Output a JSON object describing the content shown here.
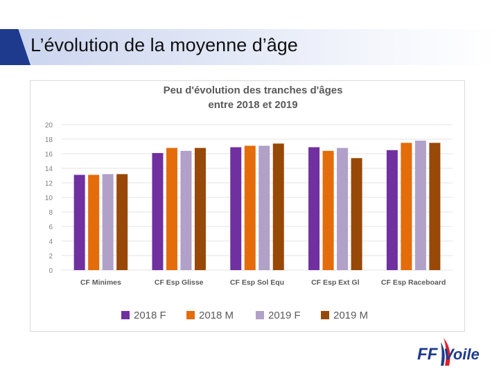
{
  "slide": {
    "title": "L’évolution de la moyenne d’âge"
  },
  "logo": {
    "text_ff": "FF",
    "text_voile": "Voile",
    "brand_color": "#1d3a8c",
    "accent_color": "#e11f26"
  },
  "chart_data": {
    "type": "bar",
    "title": "Peu d'évolution des tranches d'âges",
    "subtitle": "entre 2018 et 2019",
    "categories": [
      "CF Minimes",
      "CF Esp Glisse",
      "CF Esp Sol Equ",
      "CF Esp Ext Gl",
      "CF Esp Raceboard"
    ],
    "series": [
      {
        "name": "2018 F",
        "color": "#7030a0",
        "values": [
          13.1,
          16.1,
          16.9,
          16.9,
          16.5
        ]
      },
      {
        "name": "2018 M",
        "color": "#e46c0a",
        "values": [
          13.1,
          16.8,
          17.1,
          16.4,
          17.5
        ]
      },
      {
        "name": "2019 F",
        "color": "#b1a0c7",
        "values": [
          13.2,
          16.4,
          17.1,
          16.8,
          17.8
        ]
      },
      {
        "name": "2019 M",
        "color": "#984807",
        "values": [
          13.2,
          16.8,
          17.4,
          15.4,
          17.5
        ]
      }
    ],
    "yticks": [
      "0",
      "2",
      "4",
      "6",
      "8",
      "10",
      "12",
      "14",
      "16",
      "18",
      "20"
    ],
    "ylim": [
      0,
      20
    ],
    "xlabel": "",
    "ylabel": "",
    "grid": true,
    "legend_position": "bottom"
  }
}
